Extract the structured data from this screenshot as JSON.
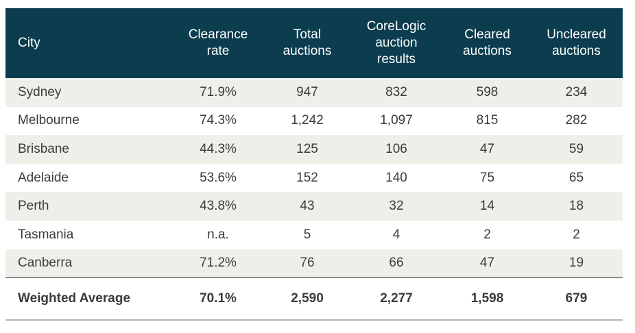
{
  "table": {
    "headers": [
      [
        "City"
      ],
      [
        "Clearance",
        "rate"
      ],
      [
        "Total",
        "auctions"
      ],
      [
        "CoreLogic",
        "auction",
        "results"
      ],
      [
        "Cleared",
        "auctions"
      ],
      [
        "Uncleared",
        "auctions"
      ]
    ],
    "rows": [
      [
        "Sydney",
        "71.9%",
        "947",
        "832",
        "598",
        "234"
      ],
      [
        "Melbourne",
        "74.3%",
        "1,242",
        "1,097",
        "815",
        "282"
      ],
      [
        "Brisbane",
        "44.3%",
        "125",
        "106",
        "47",
        "59"
      ],
      [
        "Adelaide",
        "53.6%",
        "152",
        "140",
        "75",
        "65"
      ],
      [
        "Perth",
        "43.8%",
        "43",
        "32",
        "14",
        "18"
      ],
      [
        "Tasmania",
        "n.a.",
        "5",
        "4",
        "2",
        "2"
      ],
      [
        "Canberra",
        "71.2%",
        "76",
        "66",
        "47",
        "19"
      ]
    ],
    "summary": [
      "Weighted Average",
      "70.1%",
      "2,590",
      "2,277",
      "1,598",
      "679"
    ]
  },
  "colors": {
    "header_bg": "#0b3d4f",
    "stripe_bg": "#efefea",
    "text": "#3b3b3b"
  }
}
